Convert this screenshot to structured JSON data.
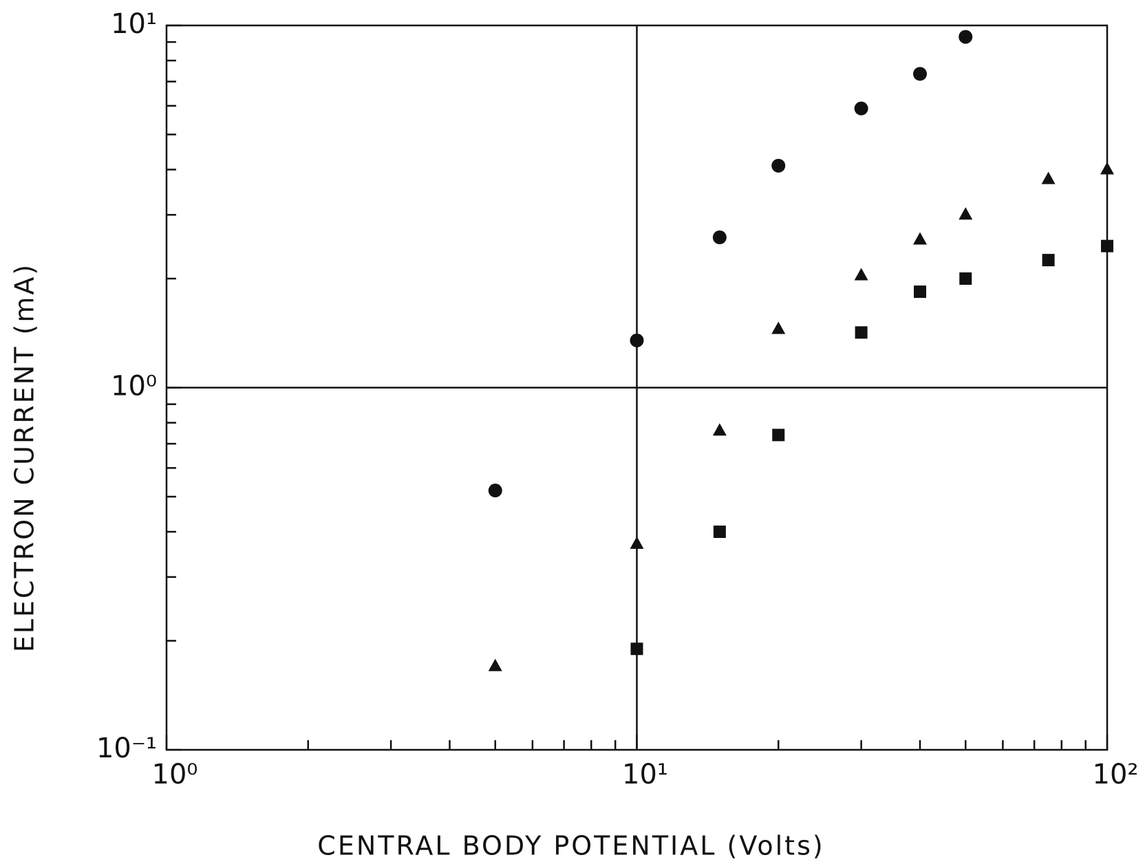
{
  "chart_data": {
    "type": "scatter",
    "x_label": "CENTRAL BODY POTENTIAL (Volts)",
    "y_label": "ELECTRON CURRENT (mA)",
    "xscale": "log",
    "yscale": "log",
    "xlim": [
      1,
      100
    ],
    "ylim": [
      0.1,
      10
    ],
    "xticks": [
      {
        "value": 1,
        "label": "10⁰"
      },
      {
        "value": 10,
        "label": "10¹"
      },
      {
        "value": 100,
        "label": "10²"
      }
    ],
    "yticks": [
      {
        "value": 0.1,
        "label": "10⁻¹"
      },
      {
        "value": 1,
        "label": "10⁰"
      },
      {
        "value": 10,
        "label": "10¹"
      }
    ],
    "xminorticks": [
      2,
      3,
      4,
      5,
      6,
      7,
      8,
      9,
      20,
      30,
      40,
      50,
      60,
      70,
      80,
      90
    ],
    "yminorticks": [
      0.2,
      0.3,
      0.4,
      0.5,
      0.6,
      0.7,
      0.8,
      0.9,
      2,
      3,
      4,
      5,
      6,
      7,
      8,
      9
    ],
    "grid": true,
    "series": [
      {
        "marker": "circle",
        "color": "#111111",
        "x": [
          5,
          10,
          15,
          20,
          30,
          40,
          50
        ],
        "values": [
          0.52,
          1.35,
          2.6,
          4.1,
          5.9,
          7.35,
          9.3
        ]
      },
      {
        "marker": "triangle",
        "color": "#111111",
        "x": [
          5,
          10,
          15,
          20,
          30,
          40,
          50,
          75,
          100
        ],
        "values": [
          0.17,
          0.37,
          0.76,
          1.45,
          2.04,
          2.56,
          3.0,
          3.76,
          4.0
        ]
      },
      {
        "marker": "square",
        "color": "#111111",
        "x": [
          10,
          15,
          20,
          30,
          40,
          50,
          75,
          100
        ],
        "values": [
          0.19,
          0.4,
          0.74,
          1.42,
          1.84,
          2.0,
          2.25,
          2.46
        ]
      }
    ]
  }
}
